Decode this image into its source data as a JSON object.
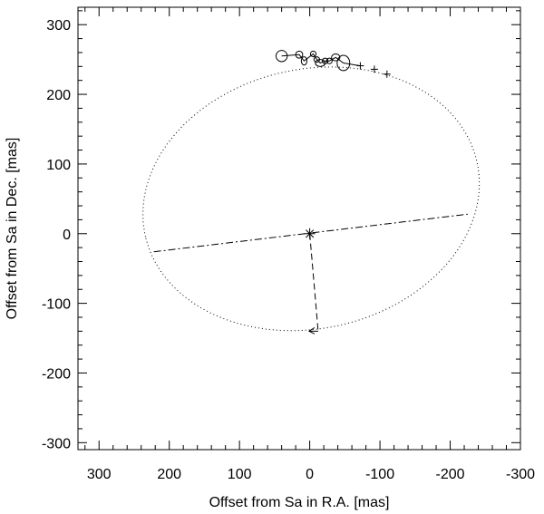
{
  "chart_data": {
    "type": "scatter",
    "title": "",
    "xlabel": "Offset from Sa in R.A. [mas]",
    "ylabel": "Offset from Sa in Dec. [mas]",
    "xlim": [
      330,
      -300
    ],
    "ylim": [
      -310,
      325
    ],
    "x_reversed": true,
    "grid": false,
    "x_ticks": [
      300,
      200,
      100,
      0,
      -100,
      -200,
      -300
    ],
    "x_tick_labels": [
      "300",
      "200",
      "100",
      "0",
      "-100",
      "-200",
      "-300"
    ],
    "y_ticks": [
      300,
      200,
      100,
      0,
      -100,
      -200,
      -300
    ],
    "y_tick_labels": [
      "300",
      "200",
      "100",
      "0",
      "-100",
      "-200",
      "-300"
    ],
    "primary": {
      "x": 0,
      "y": 0,
      "marker": "asterisk"
    },
    "orbit_ellipse": {
      "center": [
        -2,
        50
      ],
      "semi_major": 242,
      "semi_minor": 186,
      "rotation_deg": -13,
      "linestyle": "dotted"
    },
    "line_of_nodes": {
      "points": [
        [
          222,
          -26
        ],
        [
          -225,
          28
        ]
      ],
      "linestyle": "dashdot"
    },
    "periastron_line": {
      "points": [
        [
          0,
          0
        ],
        [
          -12,
          -140
        ]
      ],
      "linestyle": "dashed",
      "arrow_at_end": true
    },
    "measurements_with_error_ellipses": [
      {
        "x": 40,
        "y": 255,
        "rx": 8,
        "ry": 8
      },
      {
        "x": 15,
        "y": 257,
        "rx": 5,
        "ry": 5
      },
      {
        "x": 8,
        "y": 248,
        "rx": 4,
        "ry": 6
      },
      {
        "x": -5,
        "y": 258,
        "rx": 4,
        "ry": 4
      },
      {
        "x": -10,
        "y": 250,
        "rx": 4,
        "ry": 4
      },
      {
        "x": -15,
        "y": 245,
        "rx": 7,
        "ry": 5
      },
      {
        "x": -22,
        "y": 248,
        "rx": 4,
        "ry": 4
      },
      {
        "x": -28,
        "y": 248,
        "rx": 4,
        "ry": 4
      },
      {
        "x": -37,
        "y": 253,
        "rx": 6,
        "ry": 5
      },
      {
        "x": -48,
        "y": 245,
        "rx": 9,
        "ry": 11
      }
    ],
    "measurements_plus": [
      {
        "x": -72,
        "y": 241
      },
      {
        "x": -92,
        "y": 236
      },
      {
        "x": -110,
        "y": 229
      }
    ],
    "connector_path": [
      [
        40,
        255
      ],
      [
        15,
        257
      ],
      [
        8,
        248
      ],
      [
        -5,
        258
      ],
      [
        -10,
        250
      ],
      [
        -15,
        245
      ],
      [
        -22,
        248
      ],
      [
        -28,
        248
      ],
      [
        -37,
        253
      ],
      [
        -48,
        245
      ],
      [
        -72,
        241
      ]
    ]
  }
}
